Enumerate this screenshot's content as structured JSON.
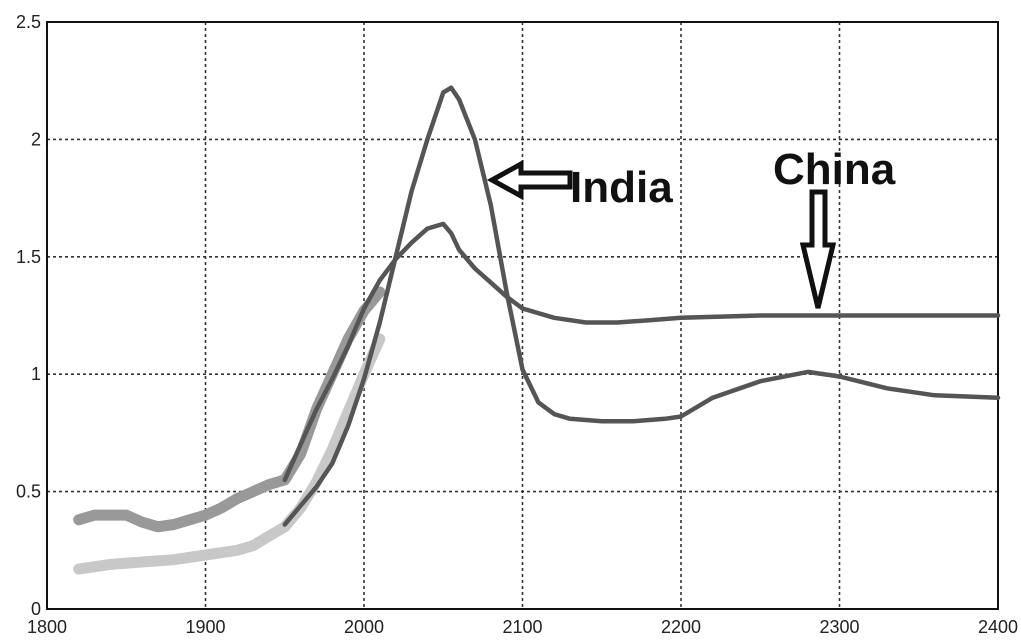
{
  "chart_data": {
    "type": "line",
    "title": "",
    "xlabel": "",
    "ylabel": "",
    "xlim": [
      1800,
      2400
    ],
    "ylim": [
      0,
      2.5
    ],
    "grid": true,
    "x_ticks": [
      1800,
      1900,
      2000,
      2100,
      2200,
      2300,
      2400
    ],
    "x_tick_labels": [
      "1800",
      "1900",
      "2000",
      "2100",
      "2200",
      "2300",
      "2400"
    ],
    "y_ticks": [
      0,
      0.5,
      1,
      1.5,
      2,
      2.5
    ],
    "y_tick_labels": [
      "0",
      "0.5",
      "1",
      "1.5",
      "2",
      "2.5"
    ],
    "series": [
      {
        "id": "india-model",
        "role": "model",
        "color": "#555555",
        "x": [
          1950,
          1960,
          1970,
          1980,
          1990,
          2000,
          2010,
          2020,
          2030,
          2040,
          2050,
          2055,
          2060,
          2070,
          2080,
          2090,
          2100,
          2110,
          2120,
          2130,
          2150,
          2170,
          2190,
          2200,
          2220,
          2250,
          2280,
          2300,
          2330,
          2360,
          2400
        ],
        "y": [
          0.36,
          0.44,
          0.52,
          0.62,
          0.78,
          0.98,
          1.22,
          1.5,
          1.78,
          2.0,
          2.2,
          2.22,
          2.17,
          2.0,
          1.72,
          1.35,
          1.02,
          0.88,
          0.83,
          0.81,
          0.8,
          0.8,
          0.81,
          0.82,
          0.9,
          0.97,
          1.01,
          0.99,
          0.94,
          0.91,
          0.9
        ]
      },
      {
        "id": "china-model",
        "role": "model",
        "color": "#555555",
        "x": [
          1950,
          1960,
          1970,
          1980,
          1990,
          2000,
          2010,
          2020,
          2030,
          2040,
          2050,
          2055,
          2060,
          2070,
          2080,
          2090,
          2100,
          2120,
          2140,
          2160,
          2180,
          2200,
          2250,
          2300,
          2350,
          2400
        ],
        "y": [
          0.55,
          0.7,
          0.85,
          0.98,
          1.12,
          1.28,
          1.4,
          1.49,
          1.56,
          1.62,
          1.64,
          1.6,
          1.53,
          1.45,
          1.39,
          1.33,
          1.28,
          1.24,
          1.22,
          1.22,
          1.23,
          1.24,
          1.25,
          1.25,
          1.25,
          1.25
        ]
      },
      {
        "id": "china-observed",
        "role": "observed",
        "color": "#999999",
        "x": [
          1820,
          1830,
          1840,
          1850,
          1860,
          1870,
          1880,
          1890,
          1900,
          1910,
          1920,
          1930,
          1940,
          1950,
          1960,
          1970,
          1980,
          1990,
          2000,
          2010
        ],
        "y": [
          0.38,
          0.4,
          0.4,
          0.4,
          0.37,
          0.35,
          0.36,
          0.38,
          0.4,
          0.43,
          0.47,
          0.5,
          0.53,
          0.55,
          0.66,
          0.85,
          1.0,
          1.15,
          1.27,
          1.35
        ]
      },
      {
        "id": "india-observed",
        "role": "observed",
        "color": "#c8c8c8",
        "x": [
          1820,
          1840,
          1860,
          1880,
          1900,
          1920,
          1930,
          1940,
          1950,
          1960,
          1970,
          1980,
          1990,
          2000,
          2010
        ],
        "y": [
          0.17,
          0.19,
          0.2,
          0.21,
          0.23,
          0.25,
          0.27,
          0.31,
          0.35,
          0.43,
          0.54,
          0.68,
          0.84,
          1.0,
          1.15
        ]
      }
    ],
    "annotations": [
      {
        "text": "India",
        "points_to_series": "india-model",
        "arrow_direction": "left"
      },
      {
        "text": "China",
        "points_to_series": "china-model",
        "arrow_direction": "down"
      }
    ]
  }
}
